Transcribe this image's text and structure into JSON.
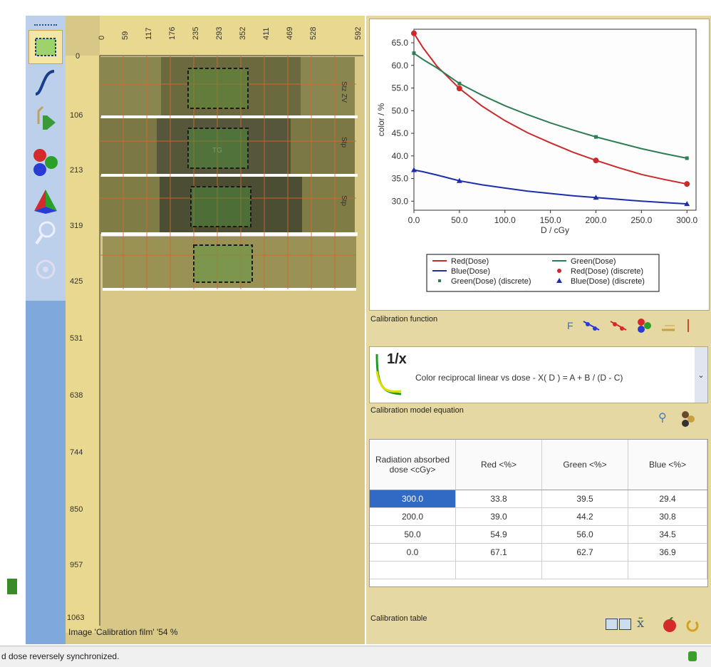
{
  "toolbar": {
    "tools": [
      {
        "name": "select-roi-icon",
        "glyph": "⬚"
      },
      {
        "name": "curve-icon",
        "glyph": "∫"
      },
      {
        "name": "step-forward-icon",
        "glyph": "⊳"
      },
      {
        "name": "rgb-balls-icon",
        "glyph": "●"
      },
      {
        "name": "prism-icon",
        "glyph": "▲"
      },
      {
        "name": "magnifier-icon",
        "glyph": "⚲"
      },
      {
        "name": "gear-icon",
        "glyph": "⚙"
      }
    ]
  },
  "image_panel": {
    "ruler_top_ticks": [
      "0",
      "59",
      "117",
      "176",
      "235",
      "293",
      "352",
      "411",
      "469",
      "528",
      "592"
    ],
    "ruler_left_ticks": [
      "0",
      "106",
      "213",
      "319",
      "425",
      "531",
      "638",
      "744",
      "850",
      "957",
      "1063"
    ],
    "strips": [
      {
        "label": "Stz ZV",
        "patch_label": ""
      },
      {
        "label": "Stp",
        "patch_label": "TG"
      },
      {
        "label": "Stp",
        "patch_label": ""
      },
      {
        "label": "",
        "patch_label": ""
      }
    ],
    "status_text": "Image 'Calibration film' '54 %"
  },
  "chart_data": {
    "type": "line",
    "title": "",
    "xlabel": "D / cGy",
    "ylabel": "color / %",
    "xlim": [
      0,
      310
    ],
    "ylim": [
      28,
      68
    ],
    "x_ticks": [
      "0.0",
      "50.0",
      "100.0",
      "150.0",
      "200.0",
      "250.0",
      "300.0"
    ],
    "y_ticks": [
      "30.0",
      "35.0",
      "40.0",
      "45.0",
      "50.0",
      "55.0",
      "60.0",
      "65.0"
    ],
    "series": [
      {
        "name": "Red(Dose)",
        "color": "#cc2a2a",
        "kind": "fit",
        "x": [
          0,
          10,
          25,
          50,
          75,
          100,
          125,
          150,
          175,
          200,
          225,
          250,
          275,
          300
        ],
        "values": [
          67.1,
          63.9,
          59.9,
          54.9,
          51.0,
          47.8,
          45.1,
          42.9,
          40.8,
          39.0,
          37.4,
          35.9,
          34.8,
          33.8
        ]
      },
      {
        "name": "Green(Dose)",
        "color": "#2f7d55",
        "kind": "fit",
        "x": [
          0,
          10,
          25,
          50,
          75,
          100,
          125,
          150,
          175,
          200,
          225,
          250,
          275,
          300
        ],
        "values": [
          62.7,
          61.3,
          59.5,
          56.0,
          53.4,
          51.1,
          49.1,
          47.3,
          45.7,
          44.2,
          42.9,
          41.6,
          40.5,
          39.5
        ]
      },
      {
        "name": "Blue(Dose)",
        "color": "#1c2fa8",
        "kind": "fit",
        "x": [
          0,
          10,
          25,
          50,
          75,
          100,
          125,
          150,
          175,
          200,
          225,
          250,
          275,
          300
        ],
        "values": [
          36.9,
          36.5,
          35.8,
          34.5,
          33.6,
          32.9,
          32.2,
          31.7,
          31.2,
          30.8,
          30.4,
          30.0,
          29.7,
          29.4
        ]
      },
      {
        "name": "Red(Dose) (discrete)",
        "color": "#cc2a2a",
        "kind": "points",
        "marker": "circle",
        "x": [
          0,
          50,
          200,
          300
        ],
        "values": [
          67.1,
          54.9,
          39.0,
          33.8
        ]
      },
      {
        "name": "Green(Dose) (discrete)",
        "color": "#2f7d55",
        "kind": "points",
        "marker": "square",
        "x": [
          0,
          50,
          200,
          300
        ],
        "values": [
          62.7,
          56.0,
          44.2,
          39.5
        ]
      },
      {
        "name": "Blue(Dose) (discrete)",
        "color": "#1c2fa8",
        "kind": "points",
        "marker": "triangle",
        "x": [
          0,
          50,
          200,
          300
        ],
        "values": [
          36.9,
          34.5,
          30.8,
          29.4
        ]
      }
    ],
    "grid": false,
    "legend_position": "bottom"
  },
  "calibration_function": {
    "section_label": "Calibration function",
    "icon_text": "1/x",
    "description": "Color reciprocal linear vs dose - X( D ) = A + B / (D - C)",
    "toolbar_icons": [
      "F",
      "fit-icon",
      "fit-icon",
      "rgb-icon",
      "ruler-icon",
      "pipe-icon"
    ]
  },
  "calibration_model": {
    "section_label": "Calibration model equation"
  },
  "calibration_table": {
    "section_label": "Calibration table",
    "headers": [
      "Radiation absorbed dose <cGy>",
      "Red <%>",
      "Green <%>",
      "Blue <%>"
    ],
    "rows": [
      [
        "300.0",
        "33.8",
        "39.5",
        "29.4"
      ],
      [
        "200.0",
        "39.0",
        "44.2",
        "30.8"
      ],
      [
        "50.0",
        "54.9",
        "56.0",
        "34.5"
      ],
      [
        "0.0",
        "67.1",
        "62.7",
        "36.9"
      ]
    ]
  },
  "status_bar": {
    "text": "d dose reversely synchronized."
  }
}
